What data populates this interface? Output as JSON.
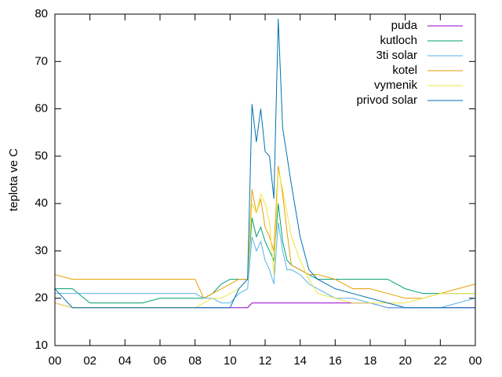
{
  "chart_data": {
    "type": "line",
    "ylabel": "teplota ve C",
    "x": [
      0,
      1,
      2,
      3,
      4,
      5,
      6,
      7,
      8,
      8.5,
      9,
      9.5,
      10,
      10.5,
      11,
      11.25,
      11.5,
      11.75,
      12,
      12.25,
      12.5,
      12.75,
      13,
      13.25,
      13.5,
      14,
      14.5,
      15,
      16,
      17,
      18,
      19,
      20,
      21,
      22,
      23,
      24
    ],
    "xlim": [
      0,
      24
    ],
    "xticks": [
      {
        "value": 0,
        "label": "00"
      },
      {
        "value": 2,
        "label": "02"
      },
      {
        "value": 4,
        "label": "04"
      },
      {
        "value": 6,
        "label": "06"
      },
      {
        "value": 8,
        "label": "08"
      },
      10,
      12,
      14,
      16,
      18,
      20,
      22,
      {
        "value": 24,
        "label": "00"
      }
    ],
    "ylim": [
      10,
      80
    ],
    "yticks": [
      10,
      20,
      30,
      40,
      50,
      60,
      70,
      80
    ],
    "legend": "top-right",
    "series": [
      {
        "name": "puda",
        "color": "#9400d3",
        "values": [
          19,
          18,
          18,
          18,
          18,
          18,
          18,
          18,
          18,
          18,
          18,
          18,
          18,
          18,
          18,
          19,
          19,
          19,
          19,
          19,
          19,
          19,
          19,
          19,
          19,
          19,
          19,
          19,
          19,
          19,
          19,
          18,
          18,
          18,
          18,
          18,
          18
        ]
      },
      {
        "name": "kutloch",
        "color": "#009e73",
        "values": [
          22,
          22,
          19,
          19,
          19,
          19,
          20,
          20,
          20,
          20,
          21,
          23,
          24,
          24,
          24,
          37,
          33,
          35,
          32,
          30,
          28,
          40,
          32,
          28,
          27,
          26,
          25,
          24,
          24,
          24,
          24,
          24,
          22,
          21,
          21,
          21,
          21
        ]
      },
      {
        "name": "3ti solar",
        "color": "#56b4e9",
        "values": [
          21,
          21,
          21,
          21,
          21,
          21,
          21,
          21,
          21,
          20,
          20,
          19,
          19,
          21,
          22,
          33,
          30,
          32,
          28,
          26,
          23,
          36,
          30,
          26,
          26,
          25,
          23,
          22,
          20,
          20,
          19,
          18,
          18,
          18,
          18,
          19,
          20
        ]
      },
      {
        "name": "kotel",
        "color": "#e69f00",
        "values": [
          25,
          24,
          24,
          24,
          24,
          24,
          24,
          24,
          24,
          20,
          21,
          22,
          23,
          24,
          24,
          43,
          38,
          41,
          35,
          33,
          30,
          48,
          42,
          34,
          27,
          26,
          25,
          25,
          24,
          22,
          22,
          21,
          20,
          20,
          21,
          22,
          23
        ]
      },
      {
        "name": "vymenik",
        "color": "#f0e442",
        "values": [
          19,
          18,
          18,
          18,
          18,
          18,
          18,
          18,
          18,
          19,
          20,
          20,
          21,
          22,
          24,
          40,
          38,
          42,
          40,
          36,
          25,
          47,
          43,
          38,
          33,
          28,
          24,
          21,
          20,
          19,
          19,
          19,
          19,
          20,
          21,
          21,
          21
        ]
      },
      {
        "name": "privod solar",
        "color": "#0072b2",
        "values": [
          22,
          18,
          18,
          18,
          18,
          18,
          18,
          18,
          18,
          18,
          18,
          18,
          18,
          22,
          24,
          61,
          53,
          60,
          51,
          50,
          41,
          79,
          56,
          50,
          44,
          33,
          26,
          24,
          22,
          21,
          20,
          19,
          18,
          18,
          18,
          18,
          18
        ]
      }
    ]
  }
}
